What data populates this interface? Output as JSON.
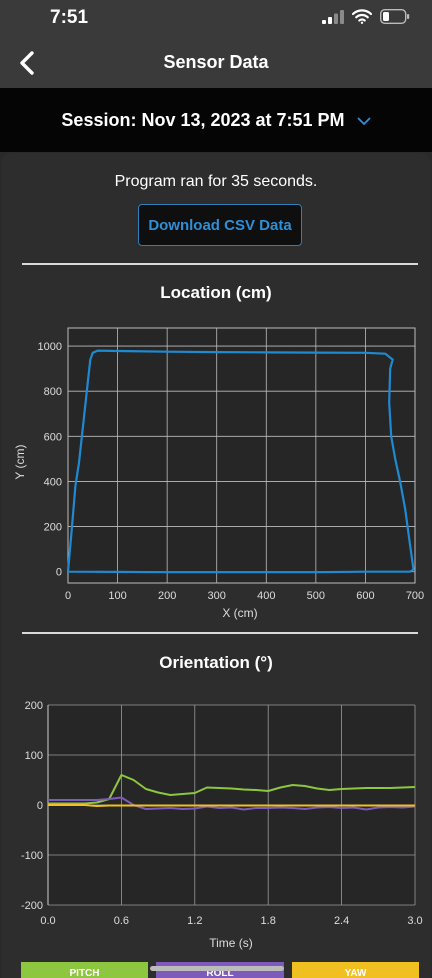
{
  "status": {
    "time": "7:51"
  },
  "nav": {
    "title": "Sensor Data"
  },
  "session": {
    "label": "Session: Nov 13, 2023 at 7:51 PM"
  },
  "summary": {
    "runtime_text": "Program ran for 35 seconds.",
    "download_label": "Download CSV Data"
  },
  "colors": {
    "accent": "#2f8fd6",
    "pitch": "#8dc63f",
    "roll": "#7d5bbd",
    "yaw": "#f0c020",
    "location_line": "#1f8ad1"
  },
  "chart_data": [
    {
      "type": "line",
      "title": "Location (cm)",
      "xlabel": "X (cm)",
      "ylabel": "Y (cm)",
      "xlim": [
        0,
        700
      ],
      "ylim": [
        -50,
        1080
      ],
      "xticks": [
        "0",
        "100",
        "200",
        "300",
        "400",
        "500",
        "600",
        "700"
      ],
      "yticks": [
        "0",
        "200",
        "400",
        "600",
        "800",
        "1000"
      ],
      "grid": true,
      "series": [
        {
          "x": [
            0,
            2,
            8,
            15,
            22,
            30,
            38,
            45,
            50,
            60,
            100,
            200,
            300,
            400,
            500,
            600,
            640,
            655,
            650,
            648,
            652,
            660,
            670,
            680,
            690,
            697,
            690,
            600,
            500,
            400,
            300,
            200,
            100,
            0
          ],
          "y": [
            0,
            50,
            200,
            380,
            480,
            640,
            800,
            940,
            970,
            980,
            978,
            975,
            973,
            972,
            971,
            970,
            966,
            940,
            900,
            750,
            600,
            500,
            400,
            280,
            120,
            10,
            0,
            0,
            -2,
            -2,
            -2,
            -2,
            -1,
            0
          ]
        }
      ]
    },
    {
      "type": "line",
      "title": "Orientation (°)",
      "xlabel": "Time (s)",
      "ylabel": "",
      "xlim": [
        0,
        3.0
      ],
      "ylim": [
        -200,
        200
      ],
      "xticks": [
        "0.0",
        "0.6",
        "1.2",
        "1.8",
        "2.4",
        "3.0"
      ],
      "yticks": [
        "-200",
        "-100",
        "0",
        "100",
        "200"
      ],
      "grid": true,
      "legend": "bottom",
      "series": [
        {
          "name": "PITCH",
          "x": [
            0,
            0.1,
            0.2,
            0.3,
            0.4,
            0.5,
            0.6,
            0.7,
            0.8,
            0.9,
            1.0,
            1.1,
            1.2,
            1.3,
            1.4,
            1.5,
            1.6,
            1.7,
            1.8,
            1.9,
            2.0,
            2.1,
            2.2,
            2.3,
            2.4,
            2.5,
            2.6,
            2.7,
            2.8,
            2.9,
            3.0
          ],
          "values": [
            3,
            3,
            3,
            3,
            5,
            12,
            60,
            50,
            32,
            25,
            20,
            22,
            24,
            35,
            34,
            33,
            31,
            30,
            28,
            35,
            40,
            38,
            33,
            30,
            32,
            33,
            34,
            34,
            34,
            35,
            36
          ]
        },
        {
          "name": "ROLL",
          "x": [
            0,
            0.1,
            0.2,
            0.3,
            0.4,
            0.5,
            0.6,
            0.7,
            0.8,
            0.9,
            1.0,
            1.1,
            1.2,
            1.3,
            1.4,
            1.5,
            1.6,
            1.7,
            1.8,
            1.9,
            2.0,
            2.1,
            2.2,
            2.3,
            2.4,
            2.5,
            2.6,
            2.7,
            2.8,
            2.9,
            3.0
          ],
          "values": [
            10,
            10,
            10,
            10,
            10,
            12,
            15,
            0,
            -8,
            -7,
            -6,
            -8,
            -7,
            -3,
            -6,
            -5,
            -9,
            -6,
            -6,
            -5,
            -6,
            -8,
            -5,
            -4,
            -6,
            -5,
            -9,
            -5,
            -4,
            -5,
            -3
          ]
        },
        {
          "name": "YAW",
          "x": [
            0,
            0.1,
            0.2,
            0.3,
            0.4,
            0.5,
            0.6,
            0.7,
            0.8,
            0.9,
            1.0,
            1.1,
            1.2,
            1.3,
            1.4,
            1.5,
            1.6,
            1.7,
            1.8,
            1.9,
            2.0,
            2.1,
            2.2,
            2.3,
            2.4,
            2.5,
            2.6,
            2.7,
            2.8,
            2.9,
            3.0
          ],
          "values": [
            0,
            0,
            0,
            0,
            -2,
            -1,
            -1,
            -1,
            -1,
            -1,
            -1,
            -1,
            -1,
            -1,
            -1,
            -1,
            -1,
            -1,
            -1,
            -1,
            -1,
            -1,
            -1,
            -1,
            -1,
            -1,
            -1,
            -1,
            -1,
            -1,
            -1
          ]
        }
      ]
    }
  ]
}
